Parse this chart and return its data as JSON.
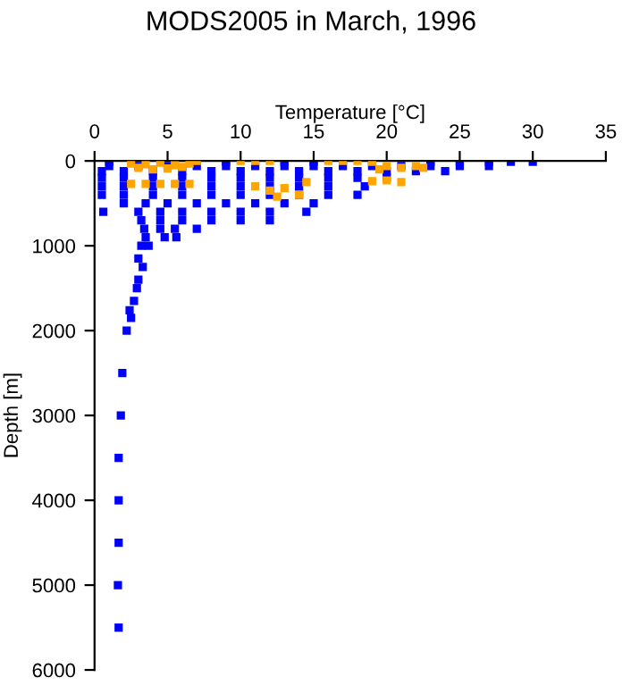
{
  "chart_data": {
    "type": "scatter",
    "title": "MODS2005 in March, 1996",
    "xlabel": "Temperature [°C]",
    "ylabel": "Depth [m]",
    "xlim": [
      0,
      35
    ],
    "xticks": [
      0,
      5,
      10,
      15,
      20,
      25,
      30,
      35
    ],
    "ylim": [
      6000,
      0
    ],
    "yticks": [
      0,
      1000,
      2000,
      3000,
      4000,
      5000,
      6000
    ],
    "grid": false,
    "marker": "square",
    "series": [
      {
        "color": "#0000ff",
        "x": [
          1,
          9,
          13,
          15,
          23,
          25,
          27,
          28.5,
          30,
          1,
          3,
          5,
          7,
          9,
          11,
          13,
          15,
          17,
          19,
          21,
          23,
          25,
          27,
          0.5,
          2,
          4,
          6,
          8,
          10,
          12,
          14,
          16,
          18,
          20,
          22,
          24,
          0.5,
          2,
          4,
          6,
          8,
          10,
          12,
          14,
          16,
          18,
          20,
          0.5,
          2,
          4,
          6,
          8,
          10,
          12,
          14,
          16,
          18.5,
          0.5,
          2,
          4,
          6,
          8,
          10,
          12,
          14,
          16,
          18,
          2,
          3.5,
          5,
          7,
          9,
          11,
          13,
          15,
          3,
          4.5,
          6,
          8,
          10,
          12,
          14.5,
          3.2,
          4.5,
          6,
          8,
          10,
          12,
          3.4,
          4.5,
          5.5,
          7,
          3.5,
          4.8,
          5.6,
          3.7,
          3.2,
          3.0,
          3.3,
          3.0,
          2.9,
          2.7,
          2.4,
          2.5,
          2.2,
          1.9,
          1.8,
          1.65,
          1.65,
          1.65,
          1.6,
          1.65,
          0.6
        ],
        "values": [
          10,
          10,
          10,
          10,
          10,
          10,
          10,
          10,
          10,
          60,
          60,
          60,
          60,
          60,
          60,
          60,
          60,
          60,
          60,
          60,
          60,
          60,
          60,
          120,
          120,
          120,
          120,
          120,
          120,
          120,
          120,
          120,
          120,
          120,
          120,
          120,
          200,
          200,
          200,
          200,
          200,
          200,
          200,
          200,
          200,
          200,
          200,
          300,
          300,
          300,
          300,
          300,
          300,
          300,
          300,
          300,
          300,
          400,
          400,
          400,
          400,
          400,
          400,
          400,
          400,
          400,
          400,
          500,
          500,
          500,
          500,
          500,
          500,
          500,
          500,
          600,
          600,
          600,
          600,
          600,
          600,
          600,
          700,
          700,
          700,
          700,
          700,
          700,
          800,
          800,
          800,
          800,
          900,
          900,
          900,
          1000,
          1000,
          1150,
          1250,
          1400,
          1500,
          1650,
          1760,
          1850,
          2000,
          2500,
          3000,
          3500,
          4000,
          4500,
          5000,
          5500,
          600
        ]
      },
      {
        "color": "#ffa500",
        "x": [
          2.5,
          3.5,
          4.5,
          5.5,
          6.5,
          3,
          4,
          5,
          6,
          7,
          2.5,
          3.5,
          4.5,
          5.5,
          6.5,
          10,
          11,
          12,
          16,
          17,
          18,
          19,
          20,
          21,
          22,
          19.5,
          11,
          12,
          13,
          12.5,
          14,
          14.5,
          20,
          21,
          19,
          22.5
        ],
        "values": [
          30,
          40,
          20,
          50,
          30,
          80,
          100,
          90,
          70,
          0,
          270,
          270,
          270,
          270,
          270,
          0,
          0,
          0,
          0,
          0,
          0,
          10,
          60,
          80,
          60,
          100,
          300,
          350,
          320,
          420,
          400,
          250,
          230,
          250,
          240,
          80
        ]
      }
    ]
  }
}
